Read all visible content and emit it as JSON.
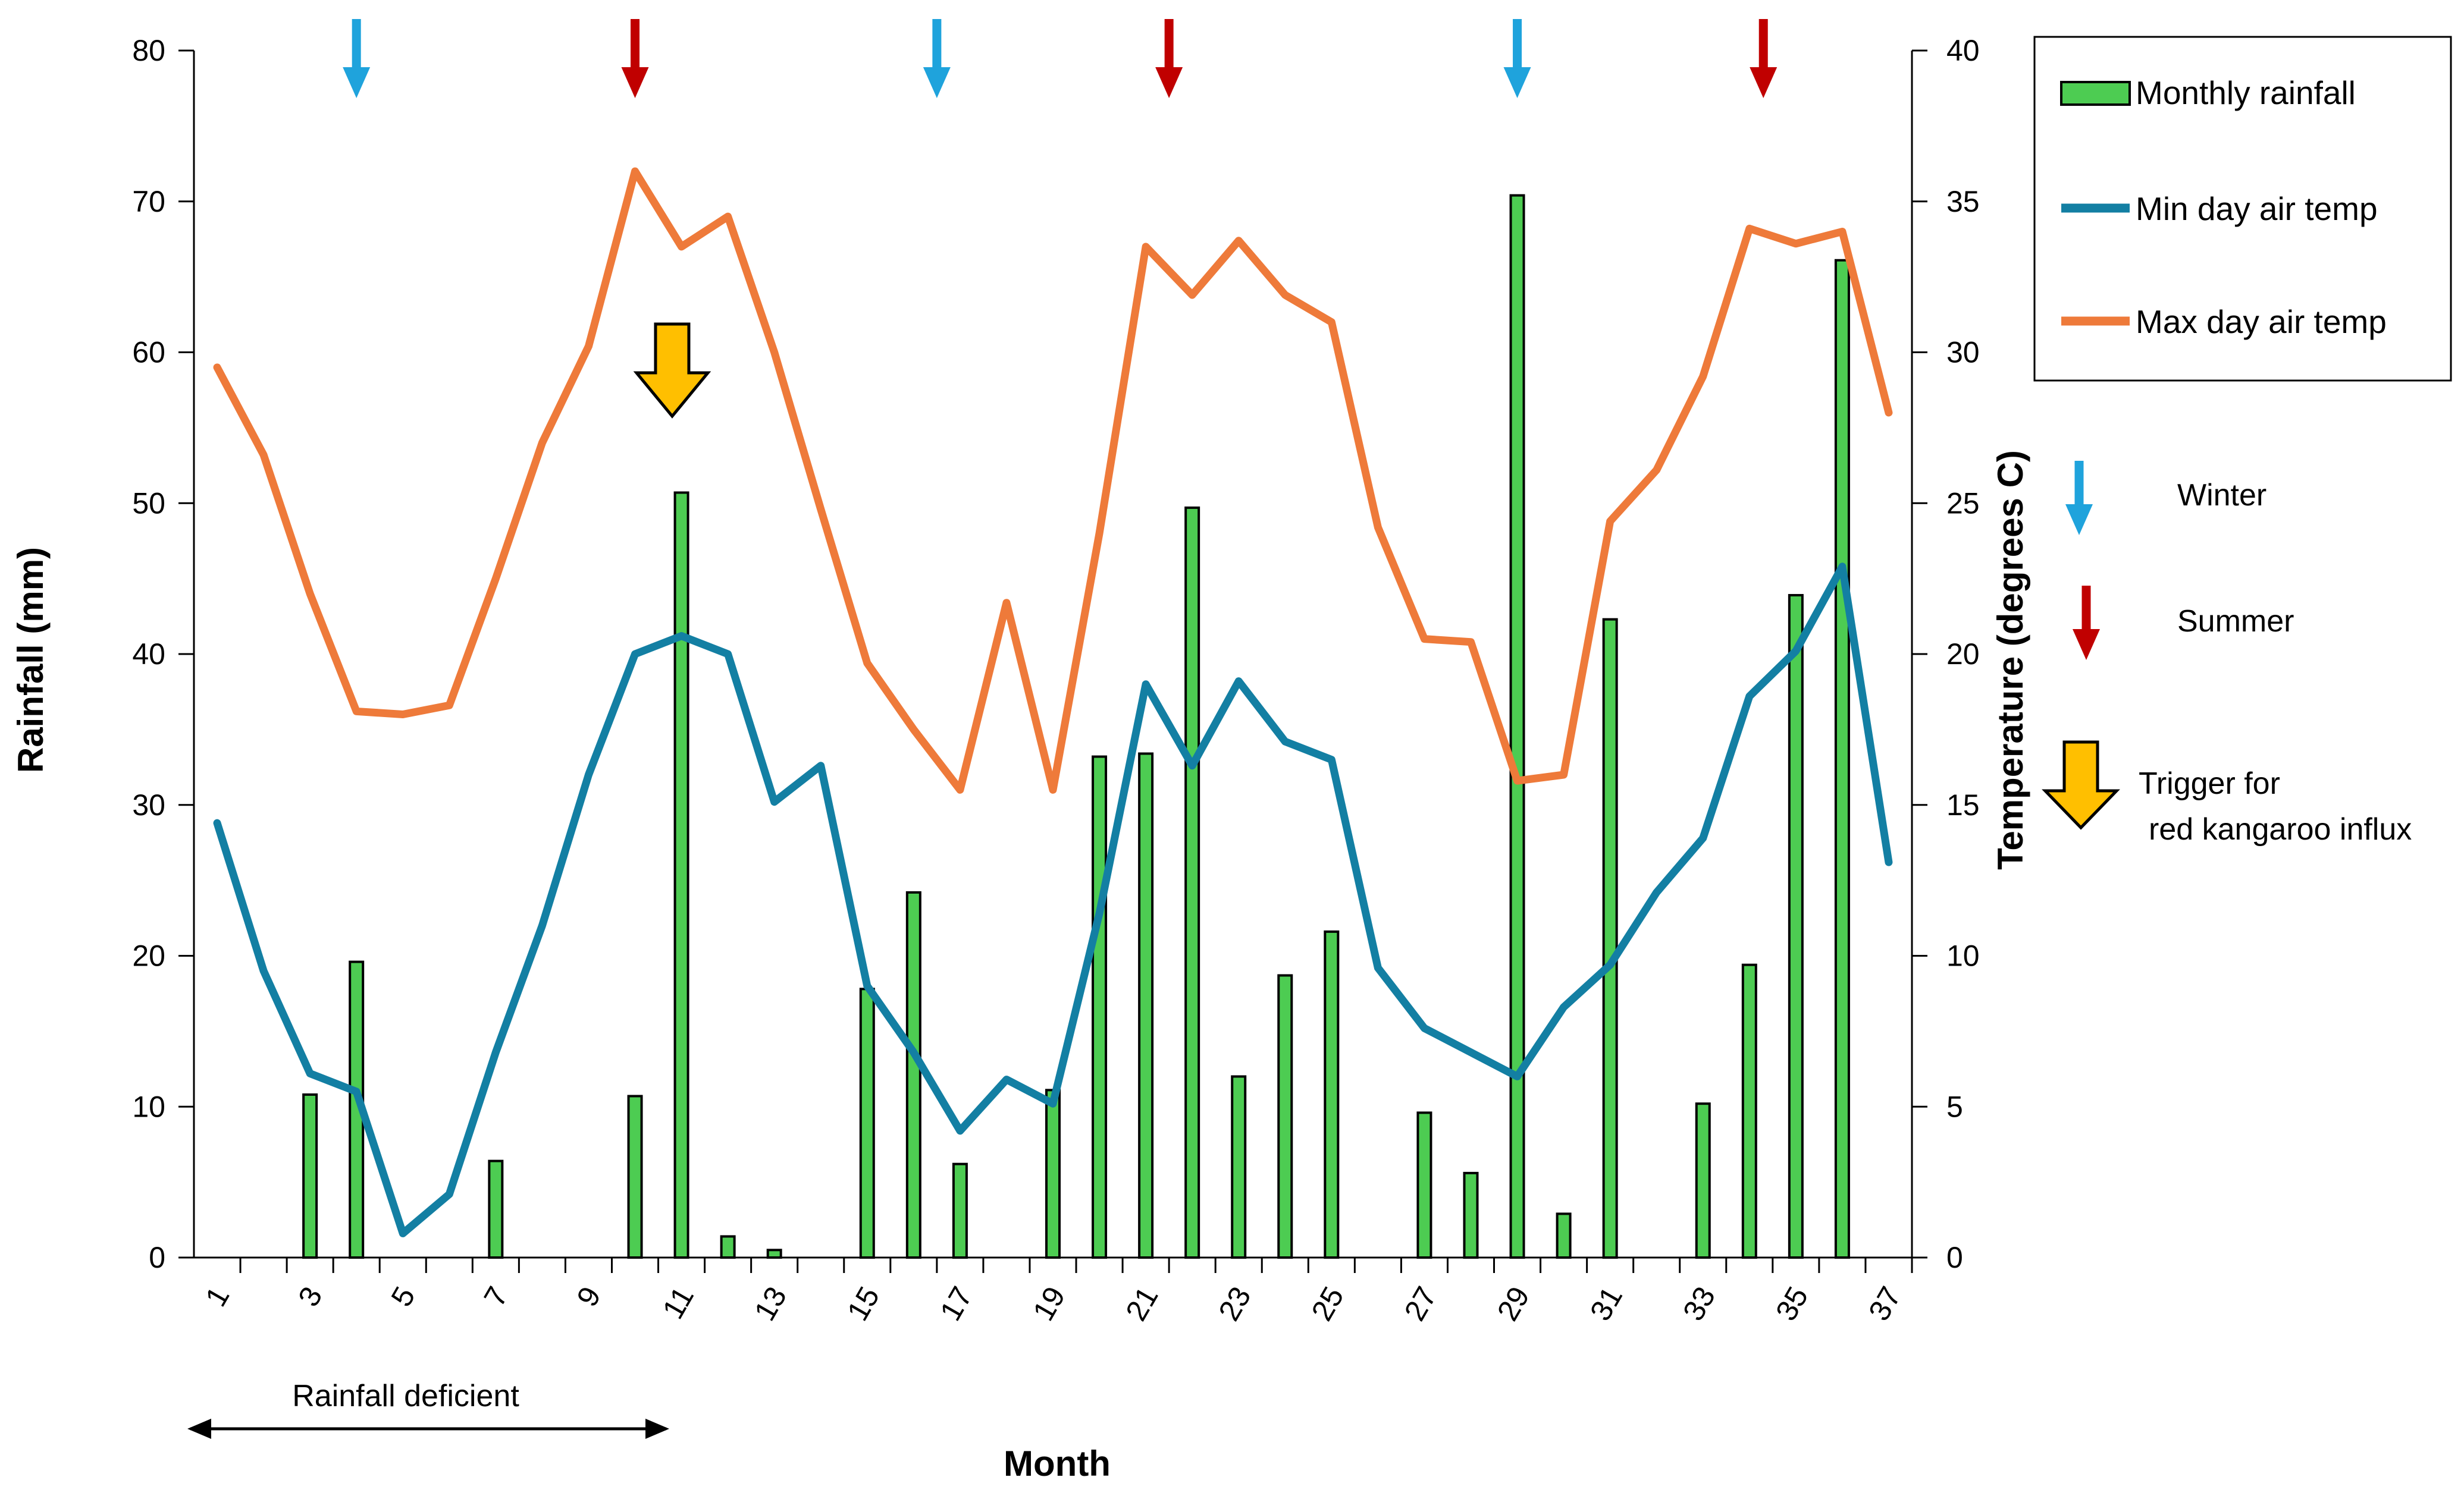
{
  "chart_data": {
    "type": "bar+line",
    "xlabel": "Month",
    "ylabel_left": "Rainfall (mm)",
    "ylabel_right": "Temperature (degrees C)",
    "ylim_left": [
      0,
      80
    ],
    "ylim_right": [
      0,
      40
    ],
    "left_ticks": [
      "0",
      "10",
      "20",
      "30",
      "40",
      "50",
      "60",
      "70",
      "80"
    ],
    "right_ticks": [
      "0",
      "5",
      "10",
      "15",
      "20",
      "25",
      "30",
      "35",
      "40"
    ],
    "x_tick_labels": [
      "1",
      "3",
      "5",
      "7",
      "9",
      "11",
      "13",
      "15",
      "17",
      "19",
      "21",
      "23",
      "25",
      "27",
      "29",
      "31",
      "33",
      "35",
      "37"
    ],
    "months": [
      1,
      2,
      3,
      4,
      5,
      6,
      7,
      8,
      9,
      10,
      11,
      12,
      13,
      14,
      15,
      16,
      17,
      18,
      19,
      20,
      21,
      22,
      23,
      24,
      25,
      26,
      27,
      28,
      29,
      30,
      31,
      32,
      33,
      34,
      35,
      36,
      37
    ],
    "series": [
      {
        "name": "Monthly rainfall",
        "kind": "bar",
        "axis": "left",
        "color": "#4dcc52",
        "values": [
          0,
          0,
          10.8,
          19.6,
          0,
          0,
          6.4,
          0,
          0,
          10.7,
          50.7,
          1.4,
          0.5,
          0,
          17.8,
          24.2,
          6.2,
          0,
          11.1,
          33.2,
          33.4,
          49.7,
          12,
          18.7,
          21.6,
          0,
          9.6,
          5.6,
          70.4,
          2.9,
          42.3,
          0,
          10.2,
          19.4,
          43.9,
          66.1,
          0
        ]
      },
      {
        "name": "Min day air temp",
        "kind": "line",
        "axis": "right",
        "color": "#137fa3",
        "values": [
          14.4,
          9.5,
          6.1,
          5.5,
          0.8,
          2.1,
          6.8,
          11,
          16,
          20,
          20.6,
          20,
          15.1,
          16.3,
          9,
          6.8,
          4.2,
          5.9,
          5.1,
          11.4,
          19,
          16.3,
          19.1,
          17.1,
          16.5,
          9.6,
          7.6,
          6.8,
          6,
          8.3,
          9.7,
          12.1,
          13.9,
          18.6,
          20.1,
          22.9,
          13.1
        ]
      },
      {
        "name": "Max day air temp",
        "kind": "line",
        "axis": "right",
        "color": "#ee7a3a",
        "values": [
          29.5,
          26.6,
          22,
          18.1,
          18,
          18.3,
          22.5,
          27,
          30.2,
          36,
          33.5,
          34.5,
          30,
          24.8,
          19.7,
          17.5,
          15.5,
          21.7,
          15.5,
          24,
          33.5,
          31.9,
          33.7,
          31.9,
          31,
          24.2,
          20.5,
          20.4,
          15.8,
          16,
          24.4,
          26.1,
          29.2,
          34.1,
          33.6,
          34,
          28
        ]
      }
    ],
    "legend": {
      "position": "top-right",
      "entries": [
        "Monthly rainfall",
        "Min day air temp",
        "Max day air temp"
      ]
    },
    "season_markers": [
      {
        "season": "Winter",
        "month": 4,
        "color": "#1fa3dc"
      },
      {
        "season": "Summer",
        "month": 10,
        "color": "#c00000"
      },
      {
        "season": "Winter",
        "month": 16.5,
        "color": "#1fa3dc"
      },
      {
        "season": "Summer",
        "month": 21.5,
        "color": "#c00000"
      },
      {
        "season": "Winter",
        "month": 29,
        "color": "#1fa3dc"
      },
      {
        "season": "Summer",
        "month": 34.3,
        "color": "#c00000"
      }
    ],
    "trigger_marker": {
      "month": 10.8,
      "color": "#ffbf00"
    },
    "side_legend": {
      "winter": "Winter",
      "summer": "Summer",
      "trigger_line1": "Trigger for",
      "trigger_line2": "red kangaroo influx"
    },
    "annotation": {
      "text": "Rainfall deficient",
      "from_month": 1,
      "to_month": 11
    }
  }
}
